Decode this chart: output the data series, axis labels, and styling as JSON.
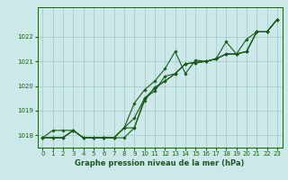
{
  "bg_color": "#cce8e8",
  "grid_color": "#aacccc",
  "line_color": "#1a5c1a",
  "marker_color": "#1a5c1a",
  "xlabel": "Graphe pression niveau de la mer (hPa)",
  "xlim": [
    -0.5,
    23.5
  ],
  "ylim": [
    1017.5,
    1023.2
  ],
  "yticks": [
    1018,
    1019,
    1020,
    1021,
    1022
  ],
  "xticks": [
    0,
    1,
    2,
    3,
    4,
    5,
    6,
    7,
    8,
    9,
    10,
    11,
    12,
    13,
    14,
    15,
    16,
    17,
    18,
    19,
    20,
    21,
    22,
    23
  ],
  "series": [
    [
      1017.9,
      1017.9,
      1017.9,
      1018.2,
      1017.9,
      1017.9,
      1017.9,
      1017.9,
      1018.3,
      1018.7,
      1019.5,
      1019.9,
      1020.2,
      1020.5,
      1020.9,
      1020.95,
      1021.0,
      1021.1,
      1021.3,
      1021.3,
      1021.4,
      1022.2,
      1022.2,
      1022.7
    ],
    [
      1017.9,
      1017.9,
      1017.9,
      1018.2,
      1017.9,
      1017.9,
      1017.9,
      1017.9,
      1018.3,
      1019.3,
      1019.85,
      1020.2,
      1020.7,
      1021.4,
      1020.5,
      1021.05,
      1021.0,
      1021.1,
      1021.3,
      1021.3,
      1021.4,
      1022.2,
      1022.2,
      1022.7
    ],
    [
      1017.9,
      1018.2,
      1018.2,
      1018.2,
      1017.9,
      1017.9,
      1017.9,
      1017.9,
      1018.3,
      1018.3,
      1019.5,
      1019.8,
      1020.4,
      1020.5,
      1020.9,
      1020.95,
      1021.0,
      1021.1,
      1021.8,
      1021.3,
      1021.4,
      1022.2,
      1022.2,
      1022.7
    ],
    [
      1017.9,
      1017.9,
      1017.9,
      1018.2,
      1017.9,
      1017.9,
      1017.9,
      1017.9,
      1017.9,
      1018.3,
      1019.4,
      1019.95,
      1020.2,
      1020.5,
      1020.9,
      1020.95,
      1021.0,
      1021.1,
      1021.3,
      1021.3,
      1021.9,
      1022.2,
      1022.2,
      1022.7
    ]
  ]
}
